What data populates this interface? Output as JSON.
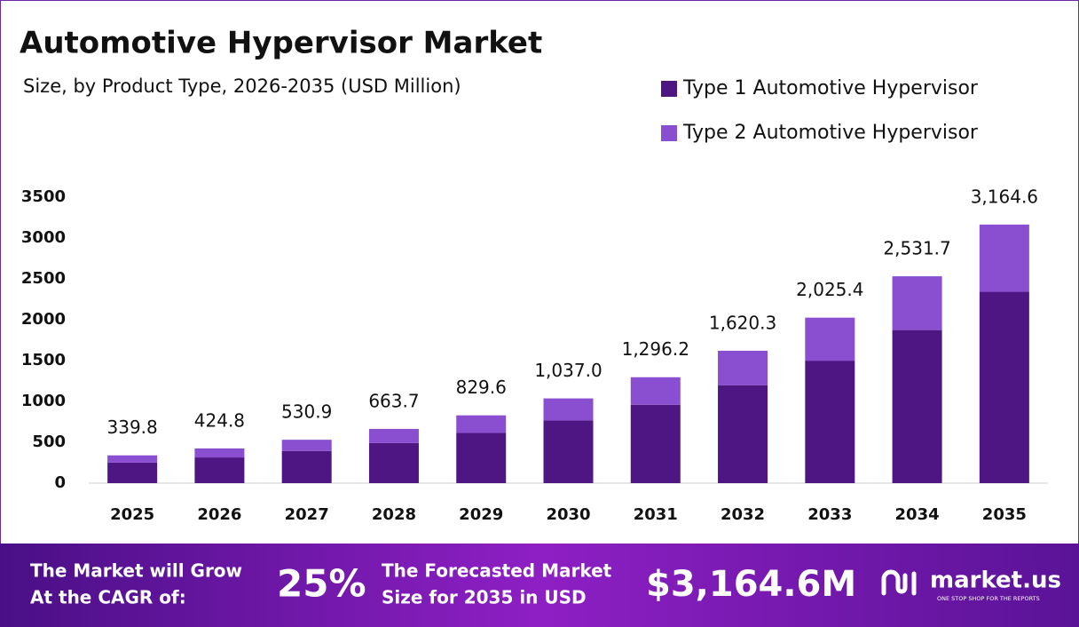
{
  "chart_data": {
    "type": "stacked-bar",
    "title": "Automotive Hypervisor Market",
    "subtitle": "Size, by Product Type, 2026-2035 (USD Million)",
    "categories": [
      "2025",
      "2026",
      "2027",
      "2028",
      "2029",
      "2030",
      "2031",
      "2032",
      "2033",
      "2034",
      "2035"
    ],
    "series": [
      {
        "name": "Type 1 Automotive Hypervisor",
        "color": "#4d1683",
        "values": [
          251.5,
          314.4,
          392.9,
          491.1,
          613.9,
          767.4,
          959.2,
          1199.0,
          1498.8,
          1873.5,
          2341.8
        ]
      },
      {
        "name": "Type 2 Automotive Hypervisor",
        "color": "#8a4fd0",
        "values": [
          88.3,
          110.4,
          138.0,
          172.6,
          215.7,
          269.6,
          337.0,
          421.3,
          526.6,
          658.2,
          822.8
        ]
      }
    ],
    "totals": [
      339.8,
      424.8,
      530.9,
      663.7,
      829.6,
      1037.0,
      1296.2,
      1620.3,
      2025.4,
      2531.7,
      3164.6
    ],
    "total_labels": [
      "339.8",
      "424.8",
      "530.9",
      "663.7",
      "829.6",
      "1,037.0",
      "1,296.2",
      "1,620.3",
      "2,025.4",
      "2,531.7",
      "3,164.6"
    ],
    "ylim": [
      0,
      3500
    ],
    "yticks": [
      0,
      500,
      1000,
      1500,
      2000,
      2500,
      3000,
      3500
    ],
    "grid": false,
    "legend": "top-right"
  },
  "footer": {
    "cagr_text": [
      "The Market will Grow",
      "At the CAGR of:"
    ],
    "cagr": "25%",
    "forecast_text": [
      "The Forecasted Market",
      "Size for 2035 in USD"
    ],
    "forecast": "$3,164.6M",
    "brand": "market.us",
    "tagline": "ONE STOP SHOP FOR THE REPORTS"
  }
}
